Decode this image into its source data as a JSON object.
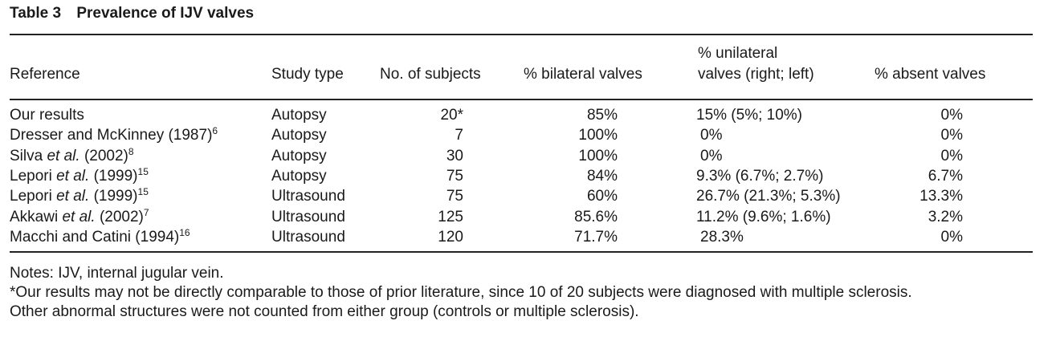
{
  "caption": {
    "label": "Table 3",
    "title": "Prevalence of IJV valves"
  },
  "table": {
    "headers": {
      "reference": "Reference",
      "study_type": "Study type",
      "subjects": "No. of subjects",
      "bilateral": "% bilateral valves",
      "unilateral_line1": "% unilateral",
      "unilateral_line2": "valves (right; left)",
      "absent": "% absent valves"
    },
    "rows": [
      {
        "ref": {
          "before": "Our results",
          "italic": "",
          "after": "",
          "sup": ""
        },
        "type": "Autopsy",
        "n": "20*",
        "bilateral": "85%",
        "unilateral": "15% (5%;  10%)",
        "absent": "0%"
      },
      {
        "ref": {
          "before": "Dresser and McKinney (1987)",
          "italic": "",
          "after": "",
          "sup": "6"
        },
        "type": "Autopsy",
        "n": "7",
        "bilateral": "100%",
        "unilateral": "0%",
        "absent": "0%"
      },
      {
        "ref": {
          "before": "Silva ",
          "italic": "et al.",
          "after": " (2002)",
          "sup": "8"
        },
        "type": "Autopsy",
        "n": "30",
        "bilateral": "100%",
        "unilateral": "0%",
        "absent": "0%"
      },
      {
        "ref": {
          "before": "Lepori ",
          "italic": "et al.",
          "after": " (1999)",
          "sup": "15"
        },
        "type": "Autopsy",
        "n": "75",
        "bilateral": "84%",
        "unilateral": "9.3% (6.7%;  2.7%)",
        "absent": "6.7%"
      },
      {
        "ref": {
          "before": "Lepori ",
          "italic": "et al.",
          "after": " (1999)",
          "sup": "15"
        },
        "type": "Ultrasound",
        "n": "75",
        "bilateral": "60%",
        "unilateral": "26.7% (21.3%;  5.3%)",
        "absent": "13.3%"
      },
      {
        "ref": {
          "before": "Akkawi ",
          "italic": "et al.",
          "after": " (2002)",
          "sup": "7"
        },
        "type": "Ultrasound",
        "n": "125",
        "bilateral": "85.6%",
        "unilateral": "11.2% (9.6%;  1.6%)",
        "absent": "3.2%"
      },
      {
        "ref": {
          "before": "Macchi and Catini (1994)",
          "italic": "",
          "after": "",
          "sup": "16"
        },
        "type": "Ultrasound",
        "n": "120",
        "bilateral": "71.7%",
        "unilateral": "28.3%",
        "absent": "0%"
      }
    ]
  },
  "notes": {
    "label": "Notes:",
    "text": " IJV, internal jugular vein.",
    "footnote1": "*Our results may not be directly comparable to those of prior literature, since 10 of 20 subjects were diagnosed with multiple sclerosis.",
    "footnote2": "Other abnormal structures were not counted from either group (controls or multiple sclerosis)."
  }
}
